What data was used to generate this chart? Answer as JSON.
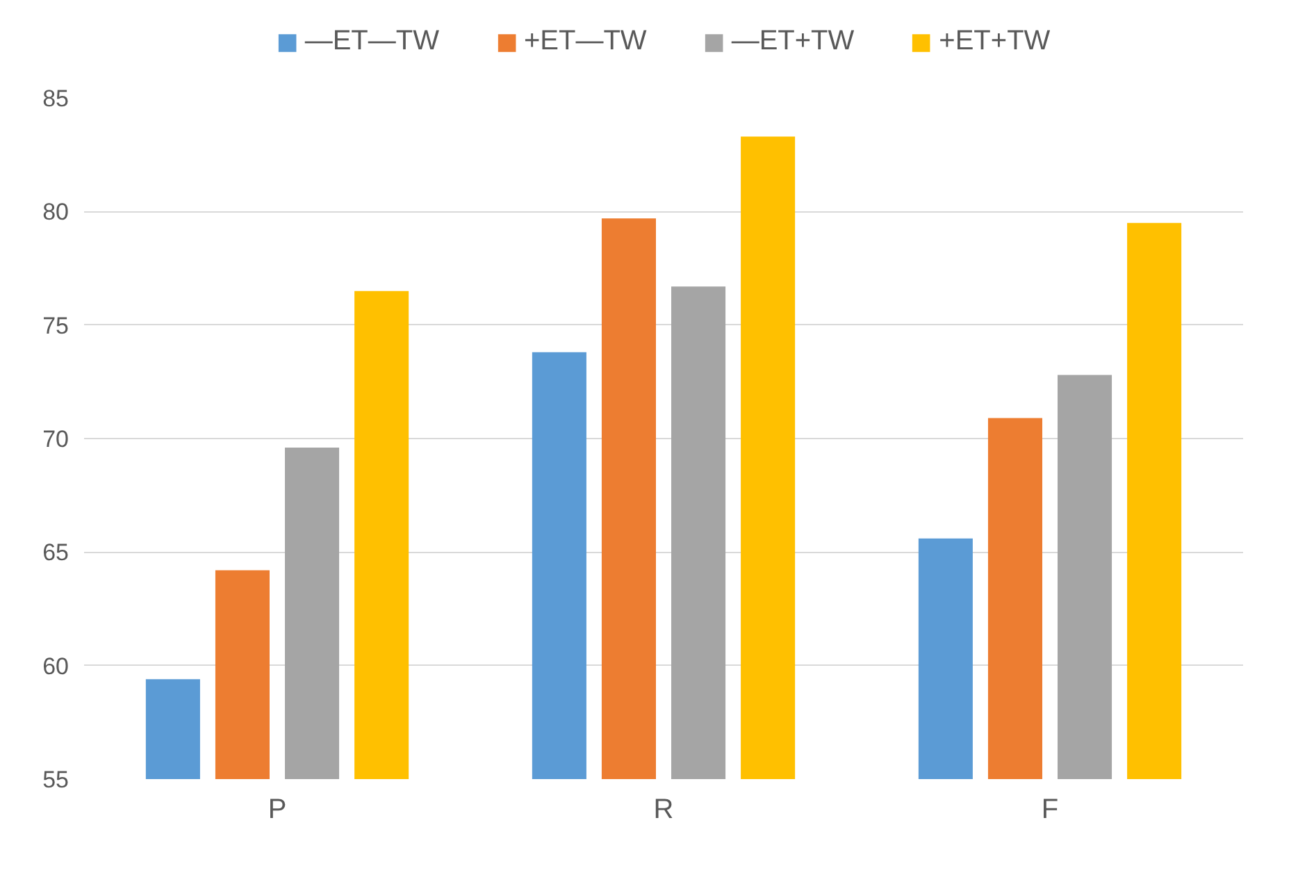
{
  "chart_data": {
    "type": "bar",
    "categories": [
      "P",
      "R",
      "F"
    ],
    "series": [
      {
        "name": "—ET—TW",
        "color": "#5b9bd5",
        "values": [
          59.4,
          73.8,
          65.6
        ]
      },
      {
        "name": "+ET—TW",
        "color": "#ed7d31",
        "values": [
          64.2,
          79.7,
          70.9
        ]
      },
      {
        "name": "—ET+TW",
        "color": "#a5a5a5",
        "values": [
          69.6,
          76.7,
          72.8
        ]
      },
      {
        "name": "+ET+TW",
        "color": "#ffc000",
        "values": [
          76.5,
          83.3,
          79.5
        ]
      }
    ],
    "ylim": [
      55,
      85
    ],
    "yticks": [
      55,
      60,
      65,
      70,
      75,
      80,
      85
    ],
    "grid": "y",
    "legend": "top"
  }
}
